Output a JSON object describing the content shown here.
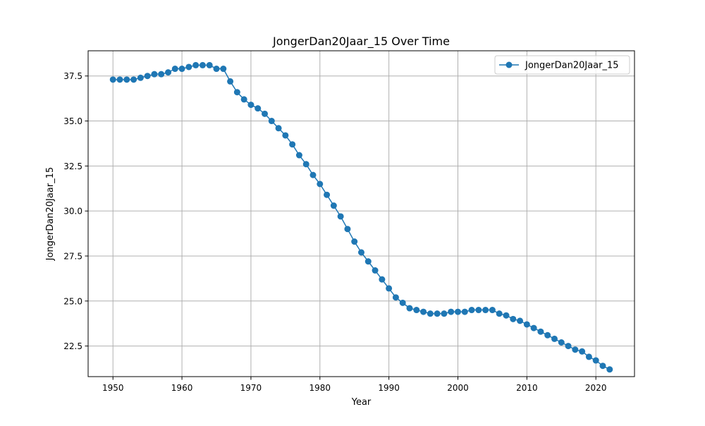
{
  "chart_data": {
    "type": "line",
    "title": "JongerDan20Jaar_15 Over Time",
    "xlabel": "Year",
    "ylabel": "JongerDan20Jaar_15",
    "xlim": [
      1946.4,
      2025.6
    ],
    "ylim": [
      20.8,
      38.9
    ],
    "xticks": [
      1950,
      1960,
      1970,
      1980,
      1990,
      2000,
      2010,
      2020
    ],
    "yticks": [
      22.5,
      25.0,
      27.5,
      30.0,
      32.5,
      35.0,
      37.5
    ],
    "ytick_labels": [
      "22.5",
      "25.0",
      "27.5",
      "30.0",
      "32.5",
      "35.0",
      "37.5"
    ],
    "grid": true,
    "legend_position": "top-right",
    "series": [
      {
        "name": "JongerDan20Jaar_15",
        "color": "#1f77b4",
        "marker": "circle",
        "x": [
          1950,
          1951,
          1952,
          1953,
          1954,
          1955,
          1956,
          1957,
          1958,
          1959,
          1960,
          1961,
          1962,
          1963,
          1964,
          1965,
          1966,
          1967,
          1968,
          1969,
          1970,
          1971,
          1972,
          1973,
          1974,
          1975,
          1976,
          1977,
          1978,
          1979,
          1980,
          1981,
          1982,
          1983,
          1984,
          1985,
          1986,
          1987,
          1988,
          1989,
          1990,
          1991,
          1992,
          1993,
          1994,
          1995,
          1996,
          1997,
          1998,
          1999,
          2000,
          2001,
          2002,
          2003,
          2004,
          2005,
          2006,
          2007,
          2008,
          2009,
          2010,
          2011,
          2012,
          2013,
          2014,
          2015,
          2016,
          2017,
          2018,
          2019,
          2020,
          2021,
          2022
        ],
        "y": [
          37.3,
          37.3,
          37.3,
          37.3,
          37.4,
          37.5,
          37.6,
          37.6,
          37.7,
          37.9,
          37.9,
          38.0,
          38.1,
          38.1,
          38.1,
          37.9,
          37.9,
          37.2,
          36.6,
          36.2,
          35.9,
          35.7,
          35.4,
          35.0,
          34.6,
          34.2,
          33.7,
          33.1,
          32.6,
          32.0,
          31.5,
          30.9,
          30.3,
          29.7,
          29.0,
          28.3,
          27.7,
          27.2,
          26.7,
          26.2,
          25.7,
          25.2,
          24.9,
          24.6,
          24.5,
          24.4,
          24.3,
          24.3,
          24.3,
          24.4,
          24.4,
          24.4,
          24.5,
          24.5,
          24.5,
          24.5,
          24.3,
          24.2,
          24.0,
          23.9,
          23.7,
          23.5,
          23.3,
          23.1,
          22.9,
          22.7,
          22.5,
          22.3,
          22.2,
          21.9,
          21.7,
          21.4,
          21.2
        ]
      }
    ]
  }
}
